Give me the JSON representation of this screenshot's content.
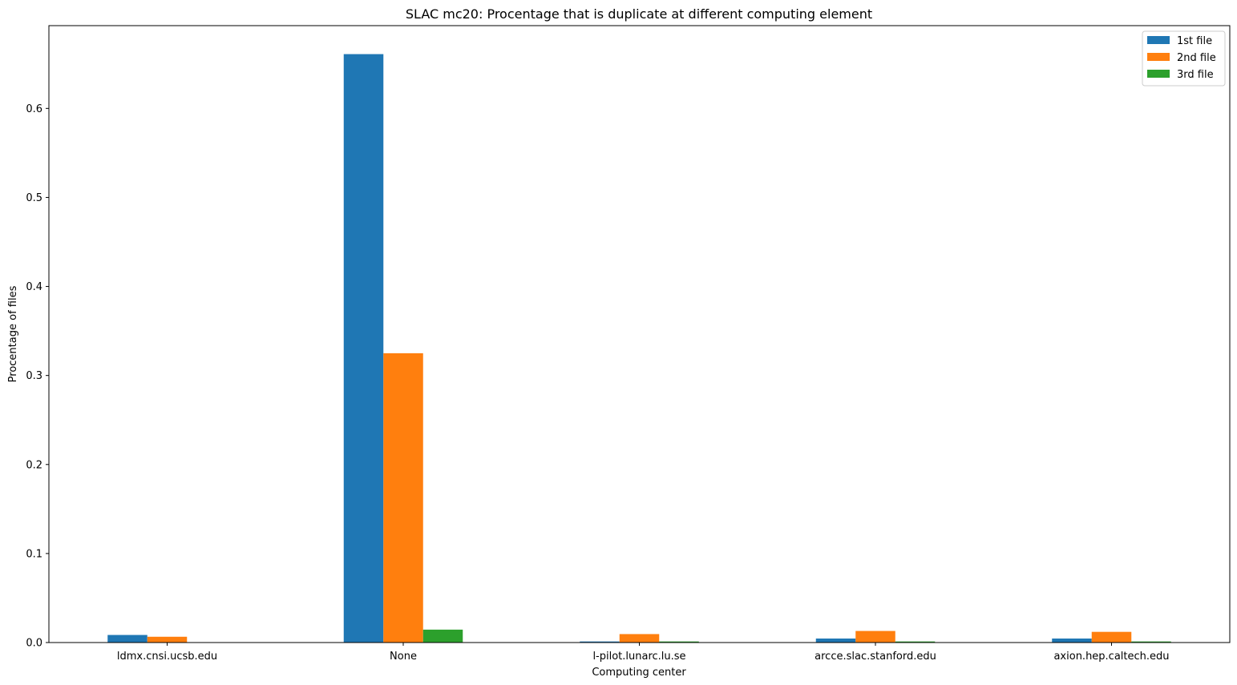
{
  "chart_data": {
    "type": "bar",
    "title": "SLAC mc20: Procentage that is duplicate at different computing element",
    "xlabel": "Computing center",
    "ylabel": "Procentage of files",
    "categories": [
      "ldmx.cnsi.ucsb.edu",
      "None",
      "l-pilot.lunarc.lu.se",
      "arcce.slac.stanford.edu",
      "axion.hep.caltech.edu"
    ],
    "series": [
      {
        "name": "1st file",
        "color": "#1f77b4",
        "values": [
          0.0085,
          0.661,
          0.0012,
          0.0045,
          0.0045
        ]
      },
      {
        "name": "2nd file",
        "color": "#ff7f0e",
        "values": [
          0.0065,
          0.325,
          0.0095,
          0.013,
          0.012
        ]
      },
      {
        "name": "3rd file",
        "color": "#2ca02c",
        "values": [
          0.0,
          0.0145,
          0.0012,
          0.0012,
          0.0012
        ]
      }
    ],
    "ylim": [
      0,
      0.693
    ],
    "yticks": [
      "0.0",
      "0.1",
      "0.2",
      "0.3",
      "0.4",
      "0.5",
      "0.6"
    ],
    "grid": false,
    "legend_position": "top-right"
  }
}
